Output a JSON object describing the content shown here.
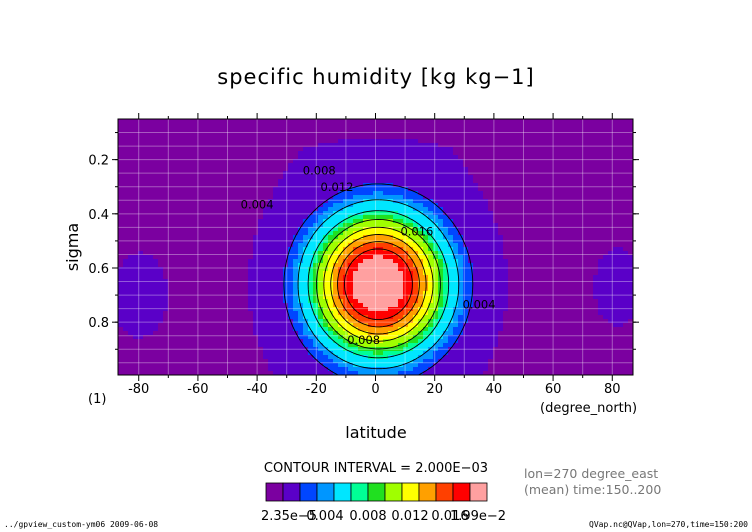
{
  "chart_data": {
    "type": "heatmap",
    "title": "specific humidity [kg kg−1]",
    "xlabel": "latitude",
    "xunit": "(degree_north)",
    "ylabel": "sigma",
    "plot_index": "(1)",
    "xlim": [
      -87,
      87
    ],
    "ylim": [
      0.05,
      0.995
    ],
    "y_inverted": true,
    "x_ticks": [
      -80,
      -60,
      -40,
      -20,
      0,
      20,
      40,
      60,
      80
    ],
    "y_ticks": [
      0.2,
      0.4,
      0.6,
      0.8
    ],
    "grid": true,
    "contour_interval_text": "CONTOUR INTERVAL = 2.000E−03",
    "contour_levels": [
      2e-05,
      0.002,
      0.004,
      0.006,
      0.008,
      0.01,
      0.012,
      0.014,
      0.016,
      0.018
    ],
    "contour_labels": [
      {
        "text": "0.004",
        "lat": -40,
        "sigma": 0.38
      },
      {
        "text": "0.008",
        "lat": -19,
        "sigma": 0.255
      },
      {
        "text": "0.012",
        "lat": -13,
        "sigma": 0.315
      },
      {
        "text": "0.016",
        "lat": 14,
        "sigma": 0.48
      },
      {
        "text": "0.004",
        "lat": 35,
        "sigma": 0.75
      },
      {
        "text": "0.008",
        "lat": -4,
        "sigma": 0.88
      }
    ],
    "colorbar": {
      "colors": [
        "#7b00a0",
        "#5a00c8",
        "#0046ff",
        "#0096ff",
        "#00e6ff",
        "#00ff96",
        "#20e020",
        "#a0ff00",
        "#ffff00",
        "#ffa000",
        "#ff4000",
        "#ff0000",
        "#ffa0a0"
      ],
      "labels": [
        "2.35e−5",
        "0.004",
        "0.008",
        "0.012",
        "0.016",
        "1.99e−2"
      ]
    }
  },
  "info": {
    "line1": "lon=270 degree_east",
    "line2": "(mean) time:150..200"
  },
  "footer": {
    "left": "../gpview_custom-ym06  2009-06-08",
    "right": "QVap.nc@QVap,lon=270,time=150:200"
  }
}
